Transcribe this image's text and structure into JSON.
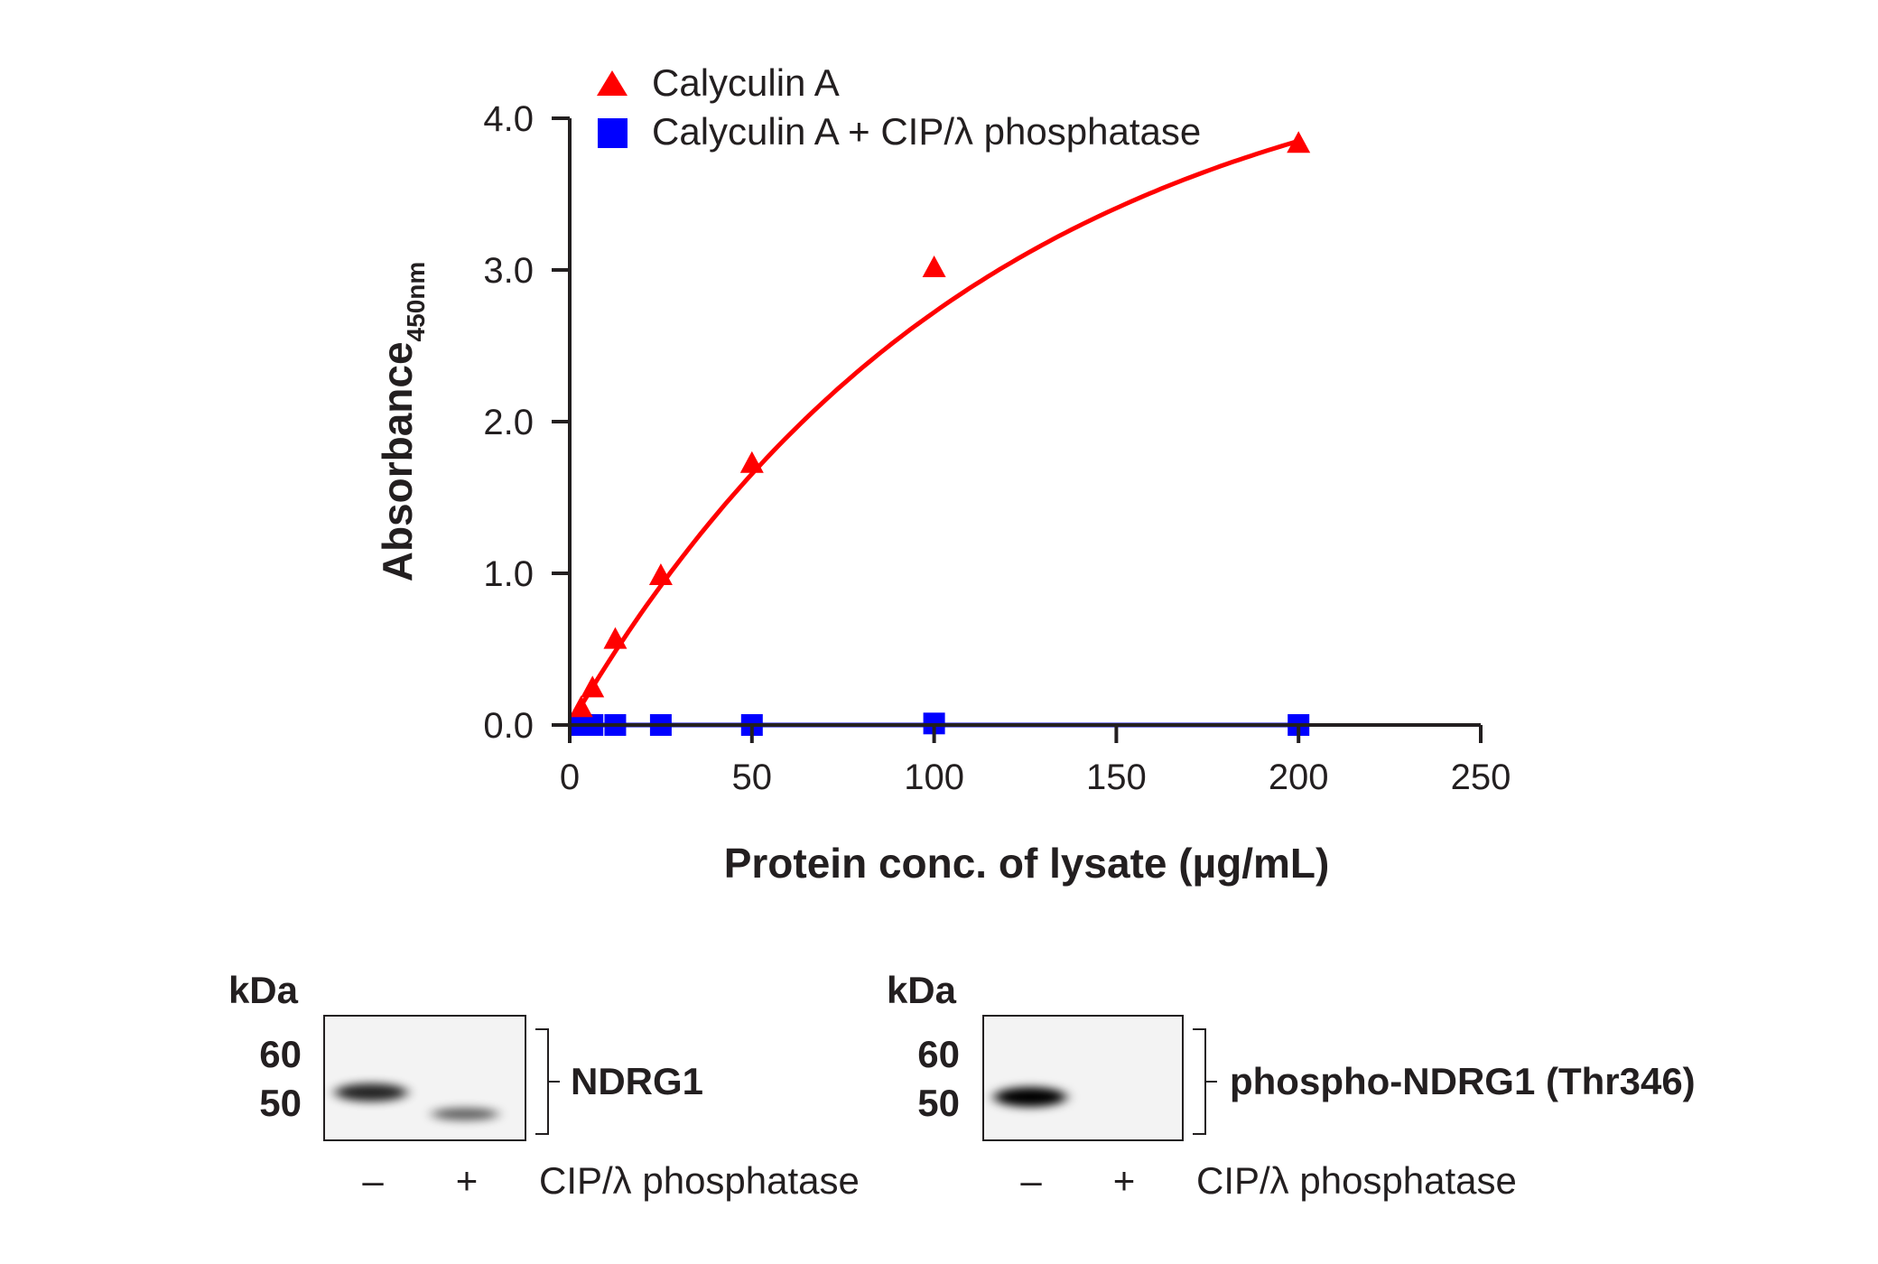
{
  "chart_data": {
    "type": "scatter",
    "xlabel": "Protein conc. of lysate (µg/mL)",
    "ylabel": "Absorbance",
    "ylabel_sub": "450nm",
    "xlim": [
      0,
      250
    ],
    "ylim": [
      0,
      4.0
    ],
    "x_ticks": [
      "0",
      "50",
      "100",
      "150",
      "200",
      "250"
    ],
    "y_ticks": [
      "0.0",
      "1.0",
      "2.0",
      "3.0",
      "4.0"
    ],
    "grid": false,
    "legend_position": "top",
    "series": [
      {
        "name": "Calyculin A",
        "marker": "triangle",
        "color": "#ff0000",
        "x": [
          3.125,
          6.25,
          12.5,
          25,
          50,
          100,
          200
        ],
        "y": [
          0.1,
          0.23,
          0.55,
          0.97,
          1.71,
          3.0,
          3.82
        ],
        "fit": "saturating curve"
      },
      {
        "name": "Calyculin A + CIP/λ phosphatase",
        "marker": "square",
        "color": "#0000ff",
        "x": [
          3.125,
          6.25,
          12.5,
          25,
          50,
          100,
          200
        ],
        "y": [
          0.0,
          0.0,
          0.0,
          0.0,
          0.0,
          0.01,
          0.0
        ],
        "fit": "linear"
      }
    ]
  },
  "blots": [
    {
      "kda_label": "kDa",
      "markers": [
        "60",
        "50"
      ],
      "target": "NDRG1",
      "lanes": [
        "–",
        "+"
      ],
      "condition": "CIP/λ phosphatase",
      "bands": [
        0.85,
        0.6
      ]
    },
    {
      "kda_label": "kDa",
      "markers": [
        "60",
        "50"
      ],
      "target": "phospho-NDRG1 (Thr346)",
      "lanes": [
        "–",
        "+"
      ],
      "condition": "CIP/λ phosphatase",
      "bands": [
        1.0,
        0.0
      ]
    }
  ]
}
